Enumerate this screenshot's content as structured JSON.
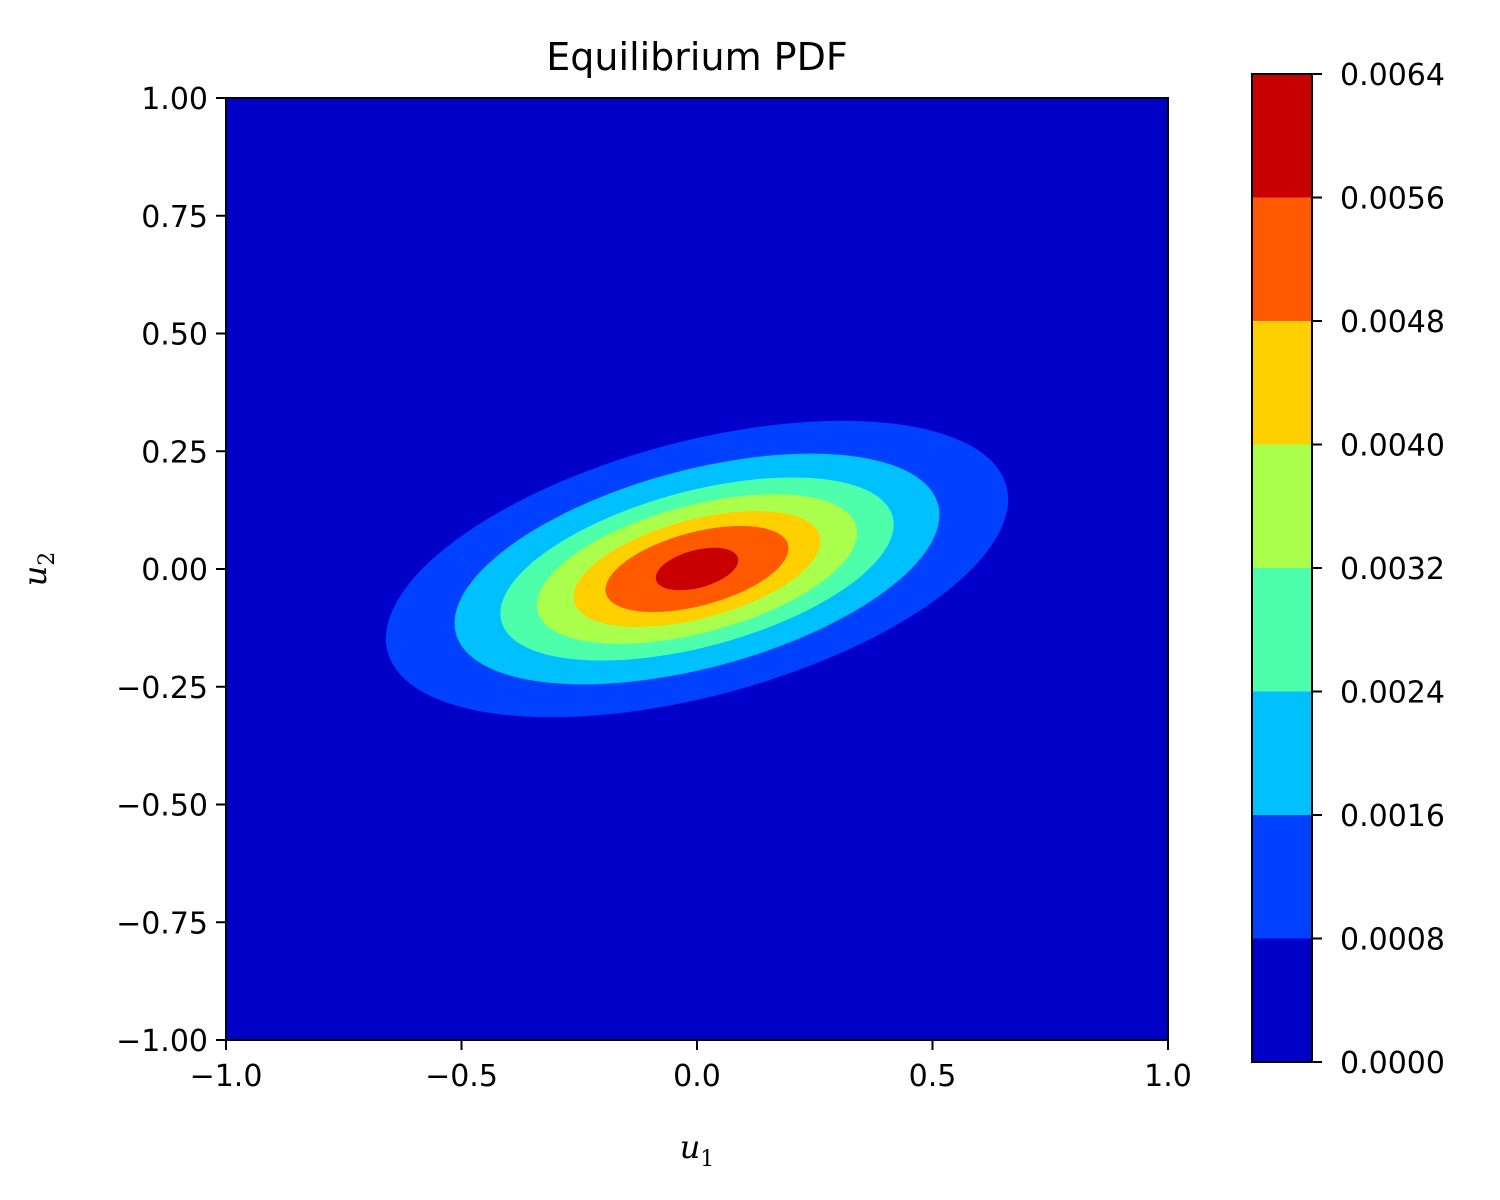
{
  "chart_data": {
    "type": "heatmap",
    "title": "Equilibrium PDF",
    "xlabel": {
      "base": "u",
      "sub": "1"
    },
    "ylabel": {
      "base": "u",
      "sub": "2"
    },
    "xlim": [
      -1.0,
      1.0
    ],
    "ylim": [
      -1.0,
      1.0
    ],
    "xticks": [
      "−1.0",
      "−0.5",
      "0.0",
      "0.5",
      "1.0"
    ],
    "xtick_values": [
      -1.0,
      -0.5,
      0.0,
      0.5,
      1.0
    ],
    "yticks": [
      "1.00",
      "0.75",
      "0.50",
      "0.25",
      "0.00",
      "−0.25",
      "−0.50",
      "−0.75",
      "−1.00"
    ],
    "ytick_values": [
      1.0,
      0.75,
      0.5,
      0.25,
      0.0,
      -0.25,
      -0.5,
      -0.75,
      -1.0
    ],
    "colorbar": {
      "levels": [
        0.0,
        0.0008,
        0.0016,
        0.0024,
        0.0032,
        0.004,
        0.0048,
        0.0056,
        0.0064
      ],
      "tick_labels": [
        "0.0000",
        "0.0008",
        "0.0016",
        "0.0024",
        "0.0032",
        "0.0040",
        "0.0048",
        "0.0056",
        "0.0064"
      ],
      "colors": [
        "#0000c8",
        "#0040ff",
        "#00c0ff",
        "#4dffaa",
        "#aaff4d",
        "#ffd000",
        "#ff5a00",
        "#c80000"
      ]
    },
    "contours": [
      {
        "level_index": 1,
        "cx": 0.0,
        "cy": 0.0,
        "rx": 0.68,
        "ry": 0.27,
        "angle_deg": 15
      },
      {
        "level_index": 2,
        "cx": 0.0,
        "cy": 0.0,
        "rx": 0.53,
        "ry": 0.21,
        "angle_deg": 15
      },
      {
        "level_index": 3,
        "cx": 0.0,
        "cy": 0.0,
        "rx": 0.43,
        "ry": 0.165,
        "angle_deg": 15
      },
      {
        "level_index": 4,
        "cx": 0.0,
        "cy": 0.0,
        "rx": 0.35,
        "ry": 0.135,
        "angle_deg": 15
      },
      {
        "level_index": 5,
        "cx": 0.0,
        "cy": 0.0,
        "rx": 0.27,
        "ry": 0.105,
        "angle_deg": 15
      },
      {
        "level_index": 6,
        "cx": 0.0,
        "cy": 0.0,
        "rx": 0.2,
        "ry": 0.078,
        "angle_deg": 15
      },
      {
        "level_index": 7,
        "cx": 0.0,
        "cy": 0.0,
        "rx": 0.09,
        "ry": 0.04,
        "angle_deg": 15
      }
    ]
  }
}
